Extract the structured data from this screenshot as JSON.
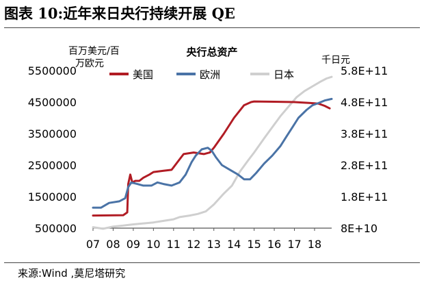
{
  "figure": {
    "title": "图表 10:近年来日央行持续开展 QE",
    "source": "来源:Wind ,莫尼塔研究"
  },
  "chart_data": {
    "type": "line",
    "title": "央行总资产",
    "left_unit": "百万美元/百万欧元",
    "right_unit": "千日元",
    "legend": [
      "美国",
      "欧洲",
      "日本"
    ],
    "colors": {
      "us": "#b11c24",
      "eu": "#4a73a6",
      "jp": "#cfcfcf"
    },
    "x_ticks": [
      "07",
      "08",
      "09",
      "10",
      "11",
      "12",
      "13",
      "14",
      "15",
      "16",
      "17",
      "18"
    ],
    "x_range": [
      2007.0,
      2018.85
    ],
    "y_left": {
      "ticks": [
        "5500000",
        "4500000",
        "3500000",
        "2500000",
        "1500000",
        "500000"
      ],
      "range": [
        500000,
        5500000
      ]
    },
    "y_right": {
      "ticks": [
        "5.8E+11",
        "4.8E+11",
        "3.8E+11",
        "2.8E+11",
        "1.8E+11",
        "8E+10"
      ],
      "range": [
        80000000000.0,
        580000000000.0
      ]
    },
    "series": [
      {
        "name": "美国",
        "key": "us",
        "axis": "left",
        "points": [
          [
            2007.0,
            900000
          ],
          [
            2008.5,
            910000
          ],
          [
            2008.7,
            1000000
          ],
          [
            2008.75,
            1900000
          ],
          [
            2008.85,
            2200000
          ],
          [
            2008.95,
            1950000
          ],
          [
            2009.1,
            2000000
          ],
          [
            2009.3,
            2000000
          ],
          [
            2009.5,
            2100000
          ],
          [
            2009.8,
            2200000
          ],
          [
            2010.0,
            2280000
          ],
          [
            2010.5,
            2320000
          ],
          [
            2010.9,
            2350000
          ],
          [
            2011.2,
            2600000
          ],
          [
            2011.5,
            2850000
          ],
          [
            2011.8,
            2880000
          ],
          [
            2012.0,
            2900000
          ],
          [
            2012.5,
            2850000
          ],
          [
            2012.8,
            2900000
          ],
          [
            2013.0,
            3050000
          ],
          [
            2013.5,
            3500000
          ],
          [
            2014.0,
            4000000
          ],
          [
            2014.5,
            4400000
          ],
          [
            2014.85,
            4500000
          ],
          [
            2015.0,
            4520000
          ],
          [
            2016.0,
            4510000
          ],
          [
            2017.0,
            4500000
          ],
          [
            2017.8,
            4470000
          ],
          [
            2018.2,
            4450000
          ],
          [
            2018.5,
            4380000
          ],
          [
            2018.75,
            4300000
          ]
        ]
      },
      {
        "name": "欧洲",
        "key": "eu",
        "axis": "left",
        "points": [
          [
            2007.0,
            1150000
          ],
          [
            2007.4,
            1150000
          ],
          [
            2007.8,
            1300000
          ],
          [
            2008.3,
            1350000
          ],
          [
            2008.6,
            1450000
          ],
          [
            2008.75,
            1800000
          ],
          [
            2008.9,
            1950000
          ],
          [
            2009.2,
            1900000
          ],
          [
            2009.5,
            1850000
          ],
          [
            2009.9,
            1850000
          ],
          [
            2010.2,
            1950000
          ],
          [
            2010.5,
            1900000
          ],
          [
            2010.9,
            1850000
          ],
          [
            2011.3,
            1950000
          ],
          [
            2011.6,
            2200000
          ],
          [
            2011.9,
            2600000
          ],
          [
            2012.1,
            2800000
          ],
          [
            2012.4,
            3000000
          ],
          [
            2012.7,
            3050000
          ],
          [
            2012.9,
            2950000
          ],
          [
            2013.1,
            2750000
          ],
          [
            2013.4,
            2500000
          ],
          [
            2013.8,
            2350000
          ],
          [
            2014.2,
            2200000
          ],
          [
            2014.5,
            2050000
          ],
          [
            2014.8,
            2050000
          ],
          [
            2015.1,
            2250000
          ],
          [
            2015.5,
            2550000
          ],
          [
            2015.9,
            2800000
          ],
          [
            2016.3,
            3100000
          ],
          [
            2016.6,
            3400000
          ],
          [
            2016.9,
            3700000
          ],
          [
            2017.2,
            4000000
          ],
          [
            2017.6,
            4250000
          ],
          [
            2017.9,
            4400000
          ],
          [
            2018.2,
            4470000
          ],
          [
            2018.5,
            4550000
          ],
          [
            2018.85,
            4600000
          ]
        ]
      },
      {
        "name": "日本",
        "key": "jp",
        "axis": "right",
        "points": [
          [
            2007.0,
            83000000000.0
          ],
          [
            2007.5,
            78000000000.0
          ],
          [
            2008.0,
            85000000000.0
          ],
          [
            2008.5,
            88000000000.0
          ],
          [
            2009.0,
            92000000000.0
          ],
          [
            2009.5,
            95000000000.0
          ],
          [
            2010.0,
            98000000000.0
          ],
          [
            2010.5,
            103000000000.0
          ],
          [
            2011.0,
            108000000000.0
          ],
          [
            2011.3,
            115000000000.0
          ],
          [
            2011.8,
            120000000000.0
          ],
          [
            2012.2,
            125000000000.0
          ],
          [
            2012.6,
            133000000000.0
          ],
          [
            2013.0,
            155000000000.0
          ],
          [
            2013.5,
            190000000000.0
          ],
          [
            2013.9,
            215000000000.0
          ],
          [
            2014.3,
            260000000000.0
          ],
          [
            2014.7,
            295000000000.0
          ],
          [
            2015.0,
            320000000000.0
          ],
          [
            2015.5,
            365000000000.0
          ],
          [
            2015.9,
            400000000000.0
          ],
          [
            2016.3,
            435000000000.0
          ],
          [
            2016.7,
            465000000000.0
          ],
          [
            2017.1,
            495000000000.0
          ],
          [
            2017.5,
            515000000000.0
          ],
          [
            2017.9,
            530000000000.0
          ],
          [
            2018.3,
            545000000000.0
          ],
          [
            2018.6,
            555000000000.0
          ],
          [
            2018.85,
            560000000000.0
          ]
        ]
      }
    ]
  }
}
